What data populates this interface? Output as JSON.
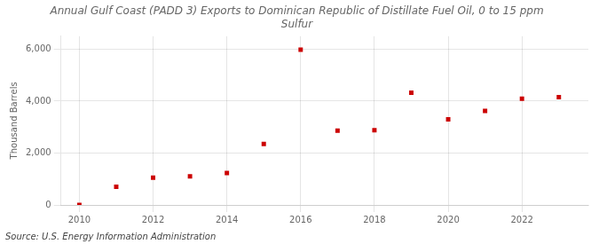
{
  "chart_data": {
    "type": "scatter",
    "title": "Annual Gulf Coast (PADD 3) Exports to Dominican Republic of Distillate Fuel Oil, 0 to 15 ppm\nSulfur",
    "ylabel": "Thousand Barrels",
    "source": "Source: U.S. Energy Information Administration",
    "x": [
      2010,
      2011,
      2012,
      2013,
      2014,
      2015,
      2016,
      2017,
      2018,
      2019,
      2020,
      2021,
      2022,
      2023
    ],
    "values": [
      0,
      700,
      1050,
      1100,
      1230,
      2350,
      5980,
      2860,
      2880,
      4320,
      3300,
      3620,
      4090,
      4150
    ],
    "color": "#cc0000",
    "marker": "square",
    "xlim": [
      2009.5,
      2023.8
    ],
    "xticks": [
      2010,
      2012,
      2014,
      2016,
      2018,
      2020,
      2022
    ],
    "ylim": [
      0,
      6500
    ],
    "yticks": [
      0,
      {
        "value": 2000,
        "label": "2,000"
      },
      {
        "value": 4000,
        "label": "4,000"
      },
      {
        "value": 6000,
        "label": "6,000"
      }
    ],
    "grid": true
  }
}
